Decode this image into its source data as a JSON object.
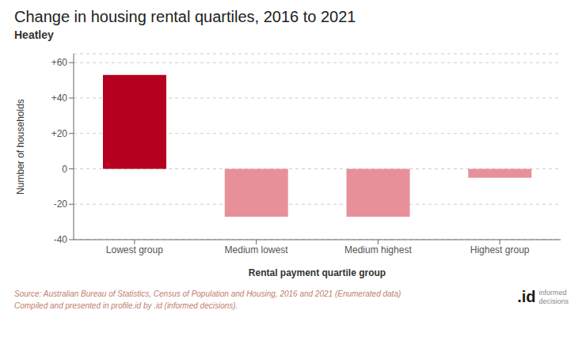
{
  "chart_data": {
    "type": "bar",
    "title": "Change in housing rental quartiles, 2016 to 2021",
    "subtitle": "Heatley",
    "categories": [
      "Lowest group",
      "Medium lowest",
      "Medium highest",
      "Highest group"
    ],
    "values": [
      53,
      -27,
      -27,
      -5
    ],
    "colors": [
      "#B5001F",
      "#E8909A",
      "#E8909A",
      "#E8909A"
    ],
    "xlabel": "Rental payment quartile group",
    "ylabel": "Number of households",
    "ylim": [
      -40,
      65
    ],
    "yticks": [
      -40,
      -20,
      0,
      {
        "value": 20,
        "label": "+20"
      },
      {
        "value": 40,
        "label": "+40"
      },
      {
        "value": 60,
        "label": "+60"
      }
    ],
    "grid": true,
    "annotations": [
      "Source: Australian Bureau of Statistics, Census of Population and Housing, 2016 and 2021 (Enumerated data)",
      "Compiled and presented in profile.id by .id (informed decisions).",
      ".id",
      "informed",
      "decisions"
    ]
  }
}
